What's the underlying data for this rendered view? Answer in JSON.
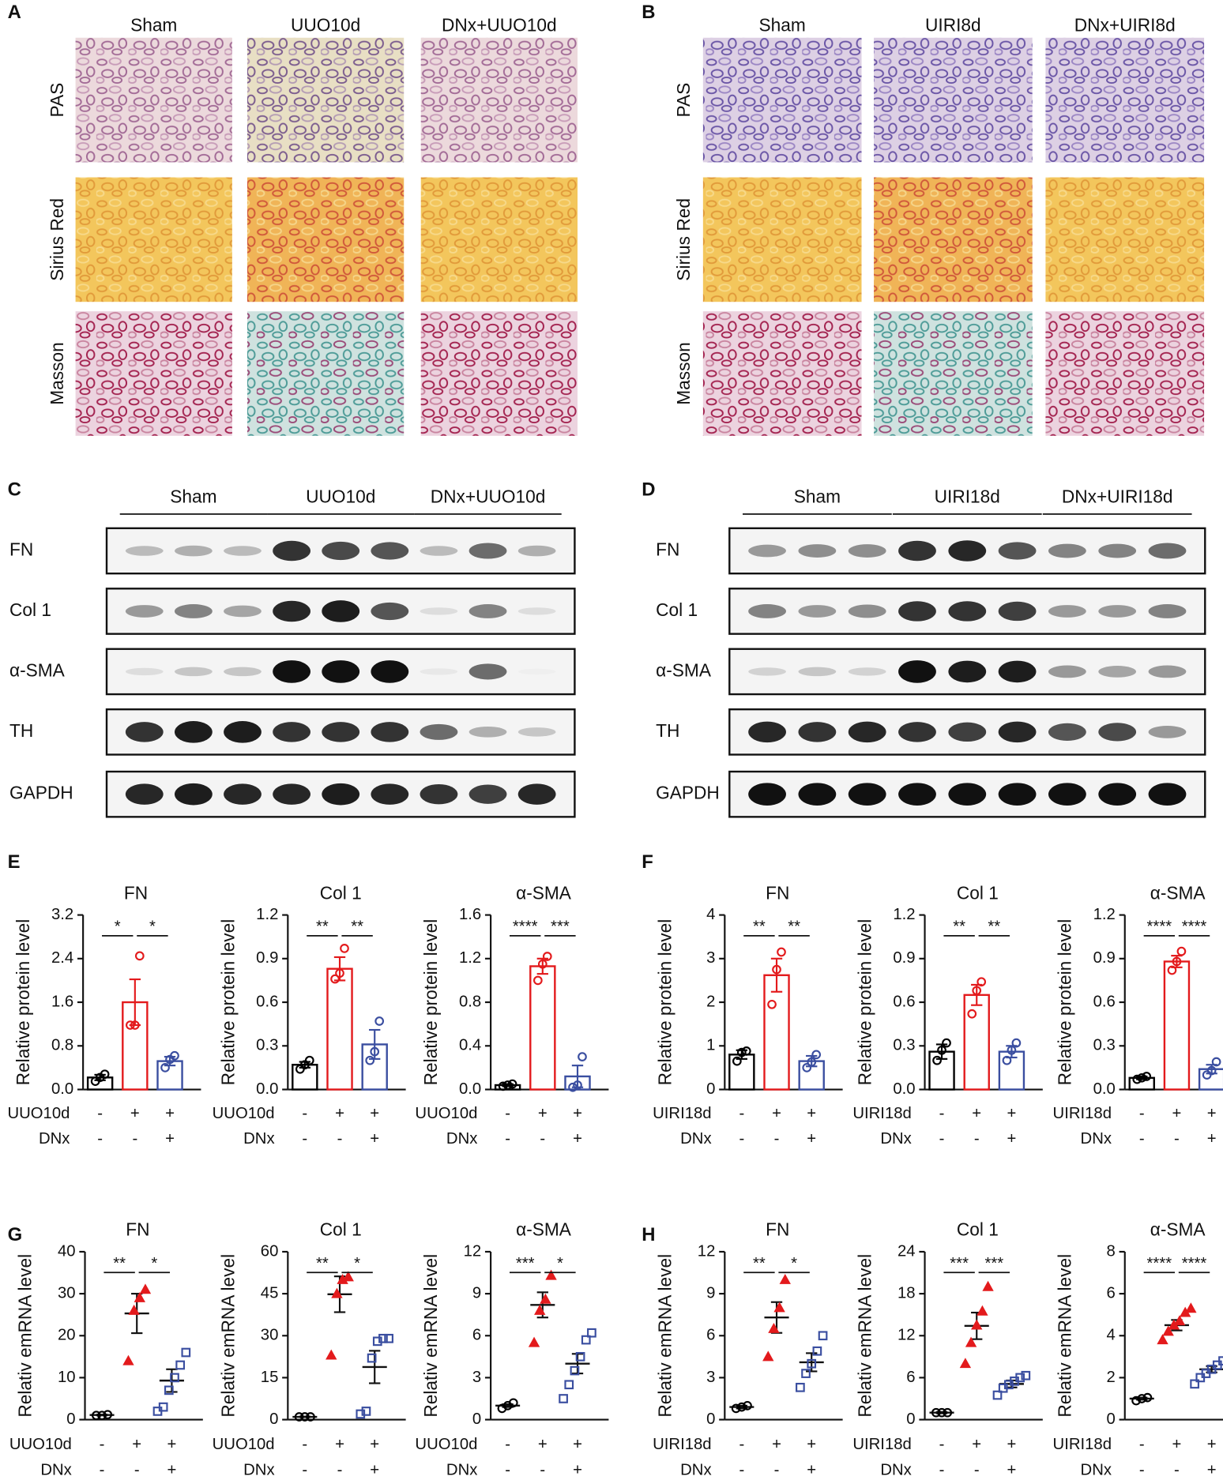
{
  "figure": {
    "A": {
      "letter": "A",
      "columns": [
        "Sham",
        "UUO10d",
        "DNx+UUO10d"
      ],
      "rows": [
        "PAS",
        "Sirius Red",
        "Masson"
      ]
    },
    "B": {
      "letter": "B",
      "columns": [
        "Sham",
        "UIRI8d",
        "DNx+UIRI8d"
      ],
      "rows": [
        "PAS",
        "Sirius Red",
        "Masson"
      ]
    },
    "C": {
      "letter": "C",
      "groups": [
        "Sham",
        "UUO10d",
        "DNx+UUO10d"
      ],
      "rows": [
        "FN",
        "Col 1",
        "α-SMA",
        "TH",
        "GAPDH"
      ]
    },
    "D": {
      "letter": "D",
      "groups": [
        "Sham",
        "UIRI18d",
        "DNx+UIRI18d"
      ],
      "rows": [
        "FN",
        "Col 1",
        "α-SMA",
        "TH",
        "GAPDH"
      ]
    },
    "E": {
      "letter": "E"
    },
    "F": {
      "letter": "F"
    },
    "G": {
      "letter": "G"
    },
    "H": {
      "letter": "H"
    }
  },
  "chart_data": [
    {
      "type": "bar",
      "title": "FN",
      "y_label": "Relative protein level",
      "ylim": [
        0,
        3.2
      ],
      "yticks": [
        {
          "value": 0,
          "label": "0.0"
        },
        0.8,
        1.6,
        2.4,
        3.2
      ],
      "means": [
        0.22,
        1.6,
        0.52
      ],
      "errors": [
        0.05,
        0.42,
        0.08
      ],
      "points": [
        [
          0.15,
          0.22,
          0.28
        ],
        [
          1.18,
          1.18,
          2.45
        ],
        [
          0.4,
          0.55,
          0.62
        ]
      ],
      "colors": [
        "#000000",
        "#e31a1c",
        "#3a4ea0"
      ],
      "markers": [
        "circle",
        "circle",
        "circle"
      ],
      "significance": [
        "*",
        "*"
      ],
      "conditions": [
        {
          "name": "UUO10d",
          "marks": [
            "-",
            "+",
            "+"
          ]
        },
        {
          "name": "DNx",
          "marks": [
            "-",
            "-",
            "+"
          ]
        }
      ]
    },
    {
      "type": "bar",
      "title": "Col 1",
      "y_label": "Relative protein level",
      "ylim": [
        0,
        1.2
      ],
      "yticks": [
        {
          "value": 0,
          "label": "0.0"
        },
        0.3,
        0.6,
        0.9,
        1.2
      ],
      "means": [
        0.17,
        0.83,
        0.31
      ],
      "errors": [
        0.02,
        0.08,
        0.1
      ],
      "points": [
        [
          0.14,
          0.17,
          0.2
        ],
        [
          0.76,
          0.8,
          0.97
        ],
        [
          0.2,
          0.26,
          0.47
        ]
      ],
      "colors": [
        "#000000",
        "#e31a1c",
        "#3a4ea0"
      ],
      "markers": [
        "circle",
        "circle",
        "circle"
      ],
      "significance": [
        "**",
        "**"
      ],
      "conditions": [
        {
          "name": "UUO10d",
          "marks": [
            "-",
            "+",
            "+"
          ]
        },
        {
          "name": "DNx",
          "marks": [
            "-",
            "-",
            "+"
          ]
        }
      ]
    },
    {
      "type": "bar",
      "title": "α-SMA",
      "y_label": "Relative protein level",
      "ylim": [
        0,
        1.6
      ],
      "yticks": [
        {
          "value": 0,
          "label": "0.0"
        },
        0.4,
        0.8,
        1.2,
        1.6
      ],
      "means": [
        0.04,
        1.13,
        0.12
      ],
      "errors": [
        0.01,
        0.07,
        0.1
      ],
      "points": [
        [
          0.03,
          0.04,
          0.05
        ],
        [
          1.0,
          1.15,
          1.22
        ],
        [
          0.02,
          0.04,
          0.3
        ]
      ],
      "colors": [
        "#000000",
        "#e31a1c",
        "#3a4ea0"
      ],
      "markers": [
        "circle",
        "circle",
        "circle"
      ],
      "significance": [
        "****",
        "***"
      ],
      "conditions": [
        {
          "name": "UUO10d",
          "marks": [
            "-",
            "+",
            "+"
          ]
        },
        {
          "name": "DNx",
          "marks": [
            "-",
            "-",
            "+"
          ]
        }
      ]
    },
    {
      "type": "bar",
      "title": "FN",
      "y_label": "Relative protein level",
      "ylim": [
        0,
        4
      ],
      "yticks": [
        0,
        1,
        2,
        3,
        4
      ],
      "means": [
        0.8,
        2.62,
        0.65
      ],
      "errors": [
        0.1,
        0.38,
        0.12
      ],
      "points": [
        [
          0.65,
          0.85,
          0.88
        ],
        [
          1.95,
          2.75,
          3.15
        ],
        [
          0.5,
          0.63,
          0.8
        ]
      ],
      "colors": [
        "#000000",
        "#e31a1c",
        "#3a4ea0"
      ],
      "markers": [
        "circle",
        "circle",
        "circle"
      ],
      "significance": [
        "**",
        "**"
      ],
      "conditions": [
        {
          "name": "UIRI18d",
          "marks": [
            "-",
            "+",
            "+"
          ]
        },
        {
          "name": "DNx",
          "marks": [
            "-",
            "-",
            "+"
          ]
        }
      ]
    },
    {
      "type": "bar",
      "title": "Col 1",
      "y_label": "Relative protein level",
      "ylim": [
        0,
        1.2
      ],
      "yticks": [
        {
          "value": 0,
          "label": "0.0"
        },
        0.3,
        0.6,
        0.9,
        1.2
      ],
      "means": [
        0.26,
        0.65,
        0.26
      ],
      "errors": [
        0.05,
        0.07,
        0.04
      ],
      "points": [
        [
          0.2,
          0.27,
          0.32
        ],
        [
          0.52,
          0.68,
          0.74
        ],
        [
          0.2,
          0.27,
          0.32
        ]
      ],
      "colors": [
        "#000000",
        "#e31a1c",
        "#3a4ea0"
      ],
      "markers": [
        "circle",
        "circle",
        "circle"
      ],
      "significance": [
        "**",
        "**"
      ],
      "conditions": [
        {
          "name": "UIRI18d",
          "marks": [
            "-",
            "+",
            "+"
          ]
        },
        {
          "name": "DNx",
          "marks": [
            "-",
            "-",
            "+"
          ]
        }
      ]
    },
    {
      "type": "bar",
      "title": "α-SMA",
      "y_label": "Relative protein level",
      "ylim": [
        0,
        1.2
      ],
      "yticks": [
        {
          "value": 0,
          "label": "0.0"
        },
        0.3,
        0.6,
        0.9,
        1.2
      ],
      "means": [
        0.08,
        0.88,
        0.14
      ],
      "errors": [
        0.01,
        0.04,
        0.03
      ],
      "points": [
        [
          0.07,
          0.08,
          0.09
        ],
        [
          0.82,
          0.88,
          0.95
        ],
        [
          0.1,
          0.13,
          0.19
        ]
      ],
      "colors": [
        "#000000",
        "#e31a1c",
        "#3a4ea0"
      ],
      "markers": [
        "circle",
        "circle",
        "circle"
      ],
      "significance": [
        "****",
        "****"
      ],
      "conditions": [
        {
          "name": "UIRI18d",
          "marks": [
            "-",
            "+",
            "+"
          ]
        },
        {
          "name": "DNx",
          "marks": [
            "-",
            "-",
            "+"
          ]
        }
      ]
    },
    {
      "type": "dot",
      "title": "FN",
      "y_label": "Relativ emRNA level",
      "ylim": [
        0,
        40
      ],
      "yticks": [
        0,
        10,
        20,
        30,
        40
      ],
      "means": [
        1.1,
        25.3,
        9.3
      ],
      "errors": [
        0.1,
        4.7,
        2.7
      ],
      "points": [
        [
          1,
          1,
          1.2
        ],
        [
          14,
          26,
          29,
          31
        ],
        [
          2,
          3,
          7,
          10,
          13,
          16
        ]
      ],
      "colors": [
        "#000000",
        "#e31a1c",
        "#3a4ea0"
      ],
      "markers": [
        "circle",
        "triangle",
        "square"
      ],
      "significance": [
        "**",
        "*"
      ],
      "conditions": [
        {
          "name": "UUO10d",
          "marks": [
            "-",
            "+",
            "+"
          ]
        },
        {
          "name": "DNx",
          "marks": [
            "-",
            "-",
            "+"
          ]
        }
      ]
    },
    {
      "type": "dot",
      "title": "Col 1",
      "y_label": "Relativ emRNA level",
      "ylim": [
        0,
        60
      ],
      "yticks": [
        0,
        15,
        30,
        45,
        60
      ],
      "means": [
        1,
        44.8,
        18.8
      ],
      "errors": [
        0.1,
        6.4,
        5.8
      ],
      "points": [
        [
          1,
          1,
          1
        ],
        [
          23,
          45,
          50,
          51
        ],
        [
          2,
          3,
          22,
          28,
          29,
          29
        ]
      ],
      "colors": [
        "#000000",
        "#e31a1c",
        "#3a4ea0"
      ],
      "markers": [
        "circle",
        "triangle",
        "square"
      ],
      "significance": [
        "**",
        "*"
      ],
      "conditions": [
        {
          "name": "UUO10d",
          "marks": [
            "-",
            "+",
            "+"
          ]
        },
        {
          "name": "DNx",
          "marks": [
            "-",
            "-",
            "+"
          ]
        }
      ]
    },
    {
      "type": "dot",
      "title": "α-SMA",
      "y_label": "Relativ emRNA level",
      "ylim": [
        0,
        12
      ],
      "yticks": [
        0,
        3,
        6,
        9,
        12
      ],
      "means": [
        1,
        8.2,
        4
      ],
      "errors": [
        0.1,
        0.9,
        0.7
      ],
      "points": [
        [
          0.8,
          1,
          1.2
        ],
        [
          5.5,
          7.8,
          8.6,
          10.3
        ],
        [
          1.5,
          2.5,
          3.5,
          4.5,
          5.7,
          6.2
        ]
      ],
      "colors": [
        "#000000",
        "#e31a1c",
        "#3a4ea0"
      ],
      "markers": [
        "circle",
        "triangle",
        "square"
      ],
      "significance": [
        "***",
        "*"
      ],
      "conditions": [
        {
          "name": "UUO10d",
          "marks": [
            "-",
            "+",
            "+"
          ]
        },
        {
          "name": "DNx",
          "marks": [
            "-",
            "-",
            "+"
          ]
        }
      ]
    },
    {
      "type": "dot",
      "title": "FN",
      "y_label": "Relativ emRNA level",
      "ylim": [
        0,
        12
      ],
      "yticks": [
        0,
        3,
        6,
        9,
        12
      ],
      "means": [
        0.9,
        7.3,
        4.1
      ],
      "errors": [
        0.1,
        1.1,
        0.65
      ],
      "points": [
        [
          0.8,
          0.9,
          1
        ],
        [
          4.5,
          6.5,
          8,
          10
        ],
        [
          2.3,
          3.3,
          4,
          4.9,
          6
        ]
      ],
      "colors": [
        "#000000",
        "#e31a1c",
        "#3a4ea0"
      ],
      "markers": [
        "circle",
        "triangle",
        "square"
      ],
      "significance": [
        "**",
        "*"
      ],
      "conditions": [
        {
          "name": "UIRI18d",
          "marks": [
            "-",
            "+",
            "+"
          ]
        },
        {
          "name": "DNx",
          "marks": [
            "-",
            "-",
            "+"
          ]
        }
      ]
    },
    {
      "type": "dot",
      "title": "Col 1",
      "y_label": "Relativ emRNA level",
      "ylim": [
        0,
        24
      ],
      "yticks": [
        0,
        6,
        12,
        18,
        24
      ],
      "means": [
        1,
        13.4,
        5.1
      ],
      "errors": [
        0.1,
        1.9,
        0.5
      ],
      "points": [
        [
          1,
          1,
          1
        ],
        [
          8,
          11,
          13.5,
          15.5,
          19
        ],
        [
          3.5,
          4.5,
          5,
          5.5,
          6,
          6.3
        ]
      ],
      "colors": [
        "#000000",
        "#e31a1c",
        "#3a4ea0"
      ],
      "markers": [
        "circle",
        "triangle",
        "square"
      ],
      "significance": [
        "***",
        "***"
      ],
      "conditions": [
        {
          "name": "UIRI18d",
          "marks": [
            "-",
            "+",
            "+"
          ]
        },
        {
          "name": "DNx",
          "marks": [
            "-",
            "-",
            "+"
          ]
        }
      ]
    },
    {
      "type": "dot",
      "title": "α-SMA",
      "y_label": "Relativ emRNA level",
      "ylim": [
        0,
        8
      ],
      "yticks": [
        0,
        2,
        4,
        6,
        8
      ],
      "means": [
        1,
        4.5,
        2.4
      ],
      "errors": [
        0.05,
        0.25,
        0.15
      ],
      "points": [
        [
          0.9,
          1,
          1.05
        ],
        [
          3.8,
          4.2,
          4.5,
          4.7,
          5.1,
          5.3
        ],
        [
          1.7,
          2,
          2.2,
          2.4,
          2.6,
          2.8,
          3
        ]
      ],
      "colors": [
        "#000000",
        "#e31a1c",
        "#3a4ea0"
      ],
      "markers": [
        "circle",
        "triangle",
        "square"
      ],
      "significance": [
        "****",
        "****"
      ],
      "conditions": [
        {
          "name": "UIRI18d",
          "marks": [
            "-",
            "+",
            "+"
          ]
        },
        {
          "name": "DNx",
          "marks": [
            "-",
            "-",
            "+"
          ]
        }
      ]
    }
  ]
}
